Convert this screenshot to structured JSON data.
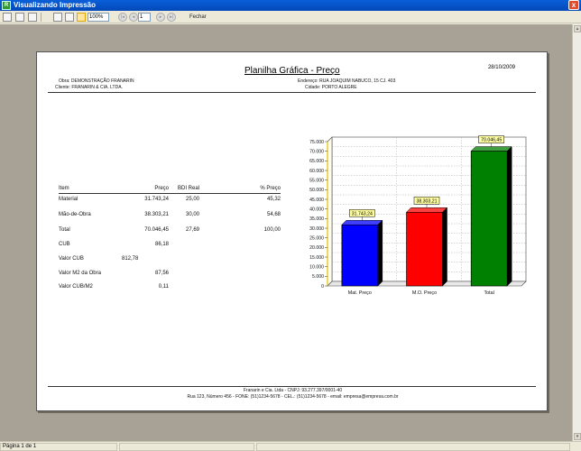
{
  "window": {
    "title": "Visualizando Impressão",
    "app_icon": "app-icon",
    "close_symbol": "x"
  },
  "toolbar": {
    "zoom": "100%",
    "page": "1",
    "close_label": "Fechar"
  },
  "report": {
    "title": "Planilha Gráfica - Preço",
    "date": "28/10/2009",
    "obra": "Obra: DEMONSTRAÇÃO FRANARIN",
    "cliente": "Cliente: FRANARIN & CIA. LTDA.",
    "endereco": "Endereço: RUA JOAQUIM NABUCO, 15 CJ. 403",
    "cidade": "Cidade: PORTO ALEGRE",
    "table": {
      "headers": [
        "Item",
        "Preço",
        "BDI Real",
        "% Preço"
      ],
      "rows": [
        {
          "item": "Material",
          "preco": "31.743,24",
          "bdi": "25,00",
          "pct": "45,32"
        },
        {
          "item": "Mão-de-Obra",
          "preco": "38.303,21",
          "bdi": "30,00",
          "pct": "54,68"
        },
        {
          "item": "Total",
          "preco": "70.046,45",
          "bdi": "27,69",
          "pct": "100,00"
        }
      ],
      "cub": {
        "label": "CUB",
        "value": "86,18"
      },
      "valor_cub": {
        "label": "Valor CUB",
        "value": "812,78"
      },
      "valor_m2": {
        "label": "Valor M2 da Obra",
        "value": "87,56"
      },
      "valor_cub_m2": {
        "label": "Valor CUB/M2",
        "value": "0,11"
      }
    },
    "footer": {
      "line1": "Franarin e Cia. Ltda - CNPJ: 93.277.397/0001-40",
      "line2": "Rua 123, Número 456 - FONE: (51)1234-5678 - CEL.: (51)1234-5678 - email: empresa@empresa.com.br"
    }
  },
  "status": {
    "pages": "Página 1 de 1"
  },
  "chart_data": {
    "type": "bar",
    "categories": [
      "Mat. Preço",
      "M.O. Preço",
      "Total"
    ],
    "values": [
      31743.24,
      38303.21,
      70046.45
    ],
    "value_labels": [
      "31.743,24",
      "38.303,21",
      "70.046,45"
    ],
    "colors": [
      "#0000ff",
      "#ff0000",
      "#008000"
    ],
    "ylim": [
      0,
      75000
    ],
    "yticks": [
      "0",
      "5.000",
      "10.000",
      "15.000",
      "20.000",
      "25.000",
      "30.000",
      "35.000",
      "40.000",
      "45.000",
      "50.000",
      "55.000",
      "60.000",
      "65.000",
      "70.000",
      "75.000"
    ],
    "grid": true
  }
}
